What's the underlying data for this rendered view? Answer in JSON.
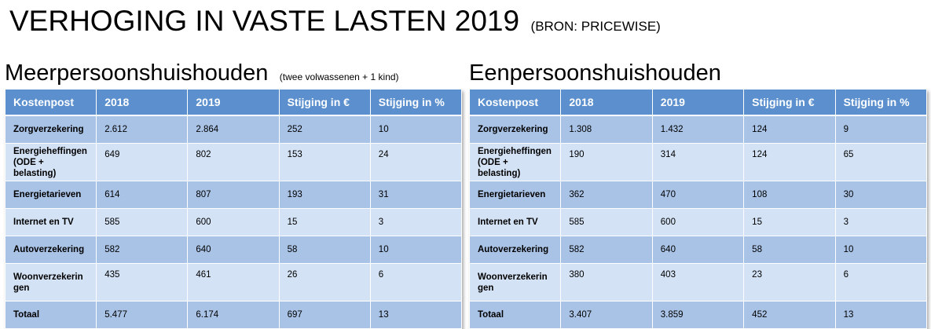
{
  "title": "VERHOGING IN VASTE LASTEN 2019",
  "source": "(BRON: PRICEWISE)",
  "columns": [
    "Kostenpost",
    "2018",
    "2019",
    "Stijging in €",
    "Stijging in %"
  ],
  "tables": [
    {
      "title": "Meerpersoonshuishouden",
      "subtitle": "(twee volwassenen + 1 kind)",
      "rows": [
        [
          "Zorgverzekering",
          "2.612",
          "2.864",
          "252",
          "10"
        ],
        [
          "Energieheffingen (ODE + belasting)",
          "649",
          "802",
          "153",
          "24"
        ],
        [
          "Energietarieven",
          "614",
          "807",
          "193",
          "31"
        ],
        [
          "Internet en TV",
          "585",
          "600",
          "15",
          "3"
        ],
        [
          "Autoverzekering",
          "582",
          "640",
          "58",
          "10"
        ],
        [
          "Woonverzekerin gen",
          "435",
          "461",
          "26",
          "6"
        ],
        [
          "Totaal",
          "5.477",
          "6.174",
          "697",
          "13"
        ]
      ]
    },
    {
      "title": "Eenpersoonshuishouden",
      "subtitle": "",
      "rows": [
        [
          "Zorgverzekering",
          "1.308",
          "1.432",
          "124",
          "9"
        ],
        [
          "Energieheffingen (ODE + belasting)",
          "190",
          "314",
          "124",
          "65"
        ],
        [
          "Energietarieven",
          "362",
          "470",
          "108",
          "30"
        ],
        [
          "Internet en TV",
          "585",
          "600",
          "15",
          "3"
        ],
        [
          "Autoverzekering",
          "582",
          "640",
          "58",
          "10"
        ],
        [
          "Woonverzekerin gen",
          "380",
          "403",
          "23",
          "6"
        ],
        [
          "Totaal",
          "3.407",
          "3.859",
          "452",
          "13"
        ]
      ]
    }
  ],
  "colors": {
    "header": "#5b8fce",
    "row_dark": "#a9c3e6",
    "row_light": "#d3e2f5"
  }
}
